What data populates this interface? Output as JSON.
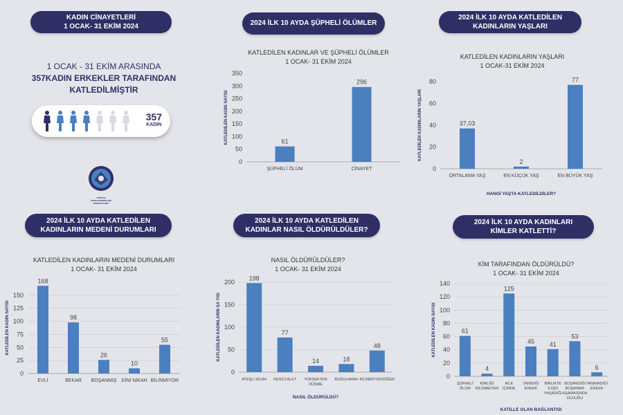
{
  "header": {
    "title_line1": "KADIN CİNAYETLERİ",
    "title_line2": "1 OCAK- 31 EKİM 2024"
  },
  "intro": {
    "line1": "1 OCAK - 31 EKİM ARASINDA",
    "line2": "357KADIN ERKEKLER TARAFINDAN",
    "line3": "KATLEDİLMİŞTİR"
  },
  "counter": {
    "number": "357",
    "unit": "KADIN",
    "figures_total": 7,
    "figures_filled": 4,
    "colors": {
      "first": "#2f2f66",
      "filled": "#4a7fc0",
      "empty": "#d9dbe0"
    }
  },
  "logo": {
    "text_line1": "TÜRKİYE",
    "text_line2": "KADIN DERNEKLERİ",
    "text_line3": "FEDERASYONU"
  },
  "colors": {
    "bar": "#4a7fc0",
    "pill": "#2f2f66",
    "axis_text": "#444444",
    "background": "#e3e5ea"
  },
  "sections": {
    "s1": {
      "line1": "2024 İLK 10 AYDA ŞÜPHELİ ÖLÜMLER",
      "line2": ""
    },
    "s2": {
      "line1": "2024 İLK 10 AYDA KATLEDİLEN",
      "line2": "KADINLARIN YAŞLARI"
    },
    "s3": {
      "line1": "2024 İLK 10 AYDA KATLEDİLEN",
      "line2": "KADINLARIN MEDENİ DURUMLARI"
    },
    "s4": {
      "line1": "2024 İLK 10 AYDA KATLEDİLEN",
      "line2": "KADINLAR NASIL ÖLDÜRÜLDÜLER?"
    },
    "s5": {
      "line1": "2024 İLK 10 AYDA KADINLARI",
      "line2": "KİMLER KATLETTİ?"
    }
  },
  "chart_data": [
    {
      "type": "bar",
      "title": "KATLEDİLEN KADINLAR VE ŞÜPHELİ ÖLÜMLER",
      "subtitle": "1 OCAK- 31 EKİM 2024",
      "categories": [
        "ŞÜPHELİ ÖLÜM",
        "CİNAYET"
      ],
      "values": [
        61,
        296
      ],
      "value_labels": [
        "61",
        "296"
      ],
      "ylabel": "KATLEDİLEN KADIN SAYISI",
      "xlabel": "",
      "ylim": [
        0,
        350
      ],
      "yticks": [
        0,
        50,
        100,
        150,
        200,
        250,
        300,
        350
      ],
      "grid": false,
      "legend": "none"
    },
    {
      "type": "bar",
      "title": "KATLEDİLEN KADINLARIN YAŞLARI",
      "subtitle": "1 OCAK-31 EKİM 2024",
      "categories": [
        "ORTALAMA YAŞ",
        "EN KÜÇÜK YAŞ",
        "EN BÜYÜK YAŞ"
      ],
      "values": [
        37.03,
        2,
        77
      ],
      "value_labels": [
        "37,03",
        "2",
        "77"
      ],
      "ylabel": "KATLEDİLEN KADINLARIN YAŞLARI",
      "xlabel": "HANGİ YAŞTA KATLEDİLDİLER?",
      "ylim": [
        0,
        80
      ],
      "yticks": [
        0,
        20,
        40,
        60,
        80
      ],
      "grid": false,
      "legend": "none"
    },
    {
      "type": "bar",
      "title": "KATLEDİLEN KADINLARIN MEDENİ DURUMLARI",
      "subtitle": "1 OCAK- 31 EKİM 2024",
      "categories": [
        "EVLİ",
        "BEKAR",
        "BOŞANMIŞ",
        "DİNİ NİKAH",
        "BİLİNMİYOR"
      ],
      "values": [
        168,
        98,
        26,
        10,
        55
      ],
      "value_labels": [
        "168",
        "98",
        "26",
        "10",
        "55"
      ],
      "ylabel": "KATLEDİLEN KADIN SAYISI",
      "xlabel": "",
      "ylim": [
        0,
        175
      ],
      "yticks": [
        0,
        25,
        50,
        75,
        100,
        125,
        150
      ],
      "grid": true,
      "legend": "none"
    },
    {
      "type": "bar",
      "title": "NASIL ÖLDÜRÜLDÜLER?",
      "subtitle": "1 OCAK- 31 EKİM 2024",
      "categories": [
        [
          "ATEŞLİ SİLAH"
        ],
        [
          "KESİCİ ALET"
        ],
        [
          "YÜKSEKTEN",
          "DÜŞME"
        ],
        [
          "BOĞULARAK"
        ],
        [
          "BİLİNMİYOR/DİĞER"
        ]
      ],
      "values": [
        198,
        77,
        14,
        18,
        48
      ],
      "value_labels": [
        "198",
        "77",
        "14",
        "18",
        "48"
      ],
      "ylabel": "KATLEDİLEN KADINLARIN SA YISI",
      "xlabel": "NASIL ÖLDÜRÜLDÜ?",
      "ylim": [
        0,
        200
      ],
      "yticks": [
        0,
        50,
        100,
        150,
        200
      ],
      "grid": true,
      "legend": "none"
    },
    {
      "type": "bar",
      "title": "KİM TARAFINDAN ÖLDÜRÜLDÜ?",
      "subtitle": "1 OCAK- 31 EKİM 2024",
      "categories": [
        [
          "ŞÜPHELİ",
          "ÖLÜM"
        ],
        [
          "KİMLİĞİ",
          "BİLİNMEYEN"
        ],
        [
          "AİLE",
          "İÇİNDE"
        ],
        [
          "TANIDIĞI",
          "ERKEK"
        ],
        [
          "BİRLİKTE",
          "İLİŞKİ",
          "YAŞADIĞI"
        ],
        [
          "BOŞANDIĞI",
          "BOŞANMA",
          "AŞAMASINDA",
          "OLDUĞU"
        ],
        [
          "TANIMADIĞI",
          "ERKEK"
        ]
      ],
      "values": [
        61,
        4,
        125,
        45,
        41,
        53,
        6
      ],
      "value_labels": [
        "61",
        "4",
        "125",
        "45",
        "41",
        "53",
        "6"
      ],
      "ylabel": "KATLEDİLEN KADIN SAYISI",
      "xlabel": "KATİLLE OLAN BAĞLANTISI",
      "ylim": [
        0,
        140
      ],
      "yticks": [
        0,
        20,
        40,
        60,
        80,
        100,
        120,
        140
      ],
      "grid": true,
      "legend": "none"
    }
  ]
}
